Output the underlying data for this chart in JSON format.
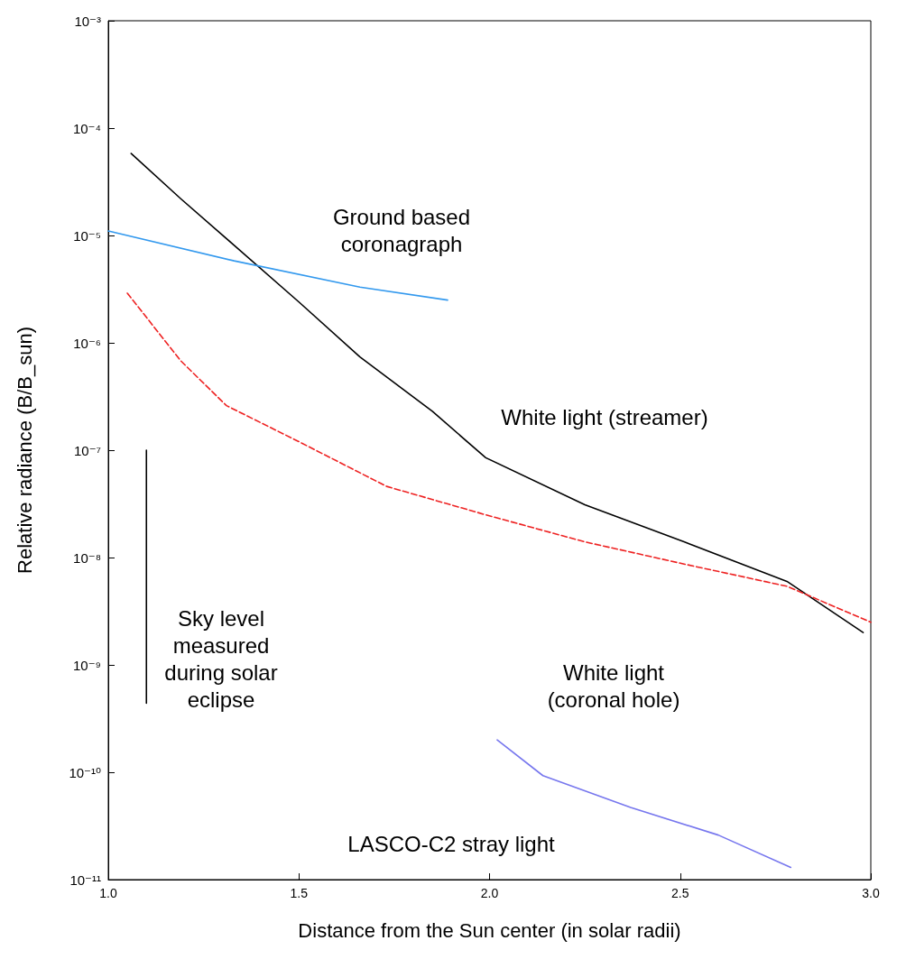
{
  "chart_data": {
    "type": "line",
    "xlabel": "Distance from the Sun center (in solar radii)",
    "ylabel": "Relative radiance (B/B_sun)",
    "log": "y",
    "grid": false,
    "marker": "none",
    "xlim": [
      1,
      3
    ],
    "xticks": [
      {
        "value": 1,
        "label": "1.0"
      },
      1.5,
      {
        "value": 2,
        "label": "2.0"
      },
      2.5,
      {
        "value": 3,
        "label": "3.0"
      }
    ],
    "ylim": [
      1e-11,
      0.001
    ],
    "yticks": [
      {
        "value": 1e-11,
        "label": "10⁻¹¹"
      },
      {
        "value": 1e-10,
        "label": "10⁻¹⁰"
      },
      {
        "value": 1e-09,
        "label": "10⁻⁹"
      },
      {
        "value": 1e-08,
        "label": "10⁻⁸"
      },
      {
        "value": 1e-07,
        "label": "10⁻⁷"
      },
      {
        "value": 1e-06,
        "label": "10⁻⁶"
      },
      {
        "value": 1e-05,
        "label": "10⁻⁵"
      },
      {
        "value": 0.0001,
        "label": "10⁻⁴"
      },
      {
        "value": 0.001,
        "label": "10⁻³"
      }
    ],
    "series": [
      {
        "color": "#000000",
        "line_style": "solid",
        "x": [
          1.06,
          1.19,
          1.33,
          1.5,
          1.66,
          1.85,
          1.99,
          2.25,
          2.51,
          2.78,
          2.98
        ],
        "values": [
          5.8e-05,
          2.2e-05,
          8.1e-06,
          2.4e-06,
          7.4e-07,
          2.3e-07,
          8.5e-08,
          3.1e-08,
          1.4e-08,
          6e-09,
          2e-09
        ]
      },
      {
        "color": "#3399ee",
        "line_style": "solid",
        "x": [
          1.0,
          1.33,
          1.66,
          1.89
        ],
        "values": [
          1.1e-05,
          5.8e-06,
          3.3e-06,
          2.5e-06
        ]
      },
      {
        "color": "#ee2222",
        "line_style": "dashed",
        "x": [
          1.05,
          1.19,
          1.31,
          1.5,
          1.73,
          1.99,
          2.25,
          2.51,
          2.78,
          3.0
        ],
        "values": [
          2.9e-06,
          6.8e-07,
          2.6e-07,
          1.2e-07,
          4.6e-08,
          2.5e-08,
          1.4e-08,
          8.7e-09,
          5.4e-09,
          2.5e-09
        ]
      },
      {
        "color": "#7777ee",
        "line_style": "solid",
        "x": [
          2.02,
          2.14,
          2.37,
          2.6,
          2.79
        ],
        "values": [
          2e-10,
          9.3e-11,
          4.7e-11,
          2.6e-11,
          1.3e-11
        ]
      },
      {
        "color": "#000000",
        "line_style": "solid",
        "x": [
          1.1,
          1.1
        ],
        "values": [
          1e-07,
          4.4e-10
        ]
      }
    ],
    "annotations": [
      "Ground based\ncoronagraph",
      "White light (streamer)",
      "White light\n(coronal hole)",
      "Sky level\nmeasured\nduring solar\neclipse",
      "LASCO-C2 stray light"
    ]
  }
}
